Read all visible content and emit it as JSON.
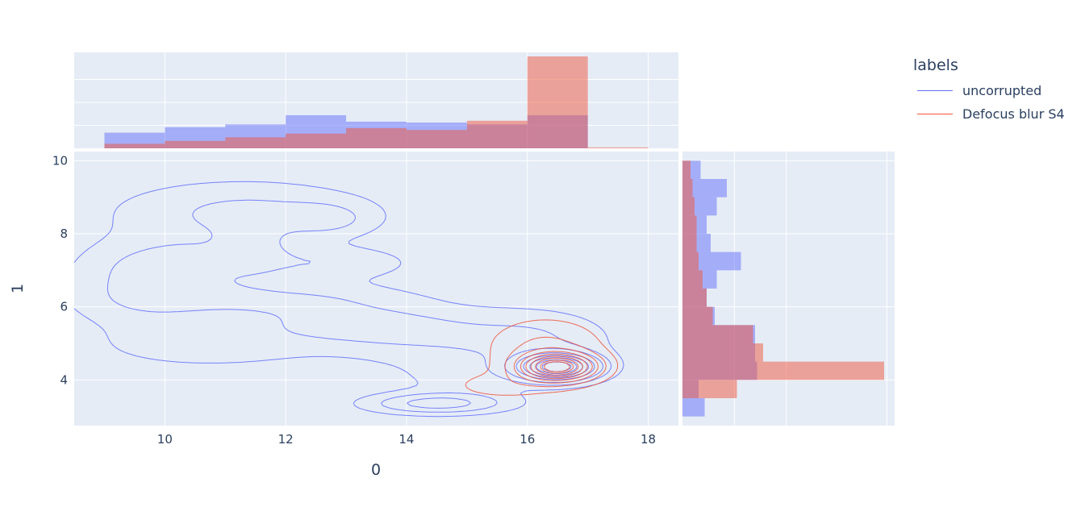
{
  "legend": {
    "title": "labels",
    "items": [
      {
        "name": "uncorrupted",
        "color": "#636efa"
      },
      {
        "name": "Defocus blur S4",
        "color": "#ef553b"
      }
    ]
  },
  "chart_data": {
    "type": "contour",
    "xlabel": "0",
    "ylabel": "1",
    "xlim": [
      8.5,
      18.5
    ],
    "ylim": [
      2.75,
      10.25
    ],
    "x_ticks": [
      10,
      12,
      14,
      16,
      18
    ],
    "y_ticks": [
      4,
      6,
      8,
      10
    ],
    "grid": true,
    "legend_placement": "top-right",
    "colors": {
      "plot_bg": "#e5ecf6",
      "grid": "#ffffff",
      "text": "#2a3f5f"
    },
    "series": [
      {
        "name": "uncorrupted",
        "color": "#636efa",
        "contour_centers": [
          [
            11.5,
            7.7
          ],
          [
            12.6,
            8.4
          ],
          [
            12.8,
            7.2
          ],
          [
            9.4,
            5.8
          ],
          [
            10.5,
            4.8
          ],
          [
            13.0,
            5.5
          ],
          [
            14.5,
            3.3
          ],
          [
            16.5,
            4.4
          ]
        ],
        "x_hist": {
          "bins": [
            [
              9,
              10
            ],
            [
              10,
              11
            ],
            [
              11,
              12
            ],
            [
              12,
              13
            ],
            [
              13,
              14
            ],
            [
              14,
              15
            ],
            [
              15,
              16
            ],
            [
              16,
              17
            ],
            [
              17,
              18
            ]
          ],
          "counts": [
            0.17,
            0.23,
            0.26,
            0.36,
            0.29,
            0.28,
            0.26,
            0.36,
            0.0
          ]
        },
        "y_hist": {
          "bins": [
            [
              3.0,
              3.5
            ],
            [
              3.5,
              4.0
            ],
            [
              4.0,
              4.5
            ],
            [
              4.5,
              5.0
            ],
            [
              5.0,
              5.5
            ],
            [
              5.5,
              6.0
            ],
            [
              6.0,
              6.5
            ],
            [
              6.5,
              7.0
            ],
            [
              7.0,
              7.5
            ],
            [
              7.5,
              8.0
            ],
            [
              8.0,
              8.5
            ],
            [
              8.5,
              9.0
            ],
            [
              9.0,
              9.5
            ],
            [
              9.5,
              10.0
            ]
          ],
          "counts": [
            0.11,
            0.08,
            0.37,
            0.36,
            0.36,
            0.16,
            0.12,
            0.17,
            0.29,
            0.14,
            0.12,
            0.17,
            0.22,
            0.09
          ]
        }
      },
      {
        "name": "Defocus blur S4",
        "color": "#ef553b",
        "contour_centers": [
          [
            16.5,
            4.4
          ],
          [
            15.5,
            3.9
          ]
        ],
        "x_hist": {
          "bins": [
            [
              9,
              10
            ],
            [
              10,
              11
            ],
            [
              11,
              12
            ],
            [
              12,
              13
            ],
            [
              13,
              14
            ],
            [
              14,
              15
            ],
            [
              15,
              16
            ],
            [
              16,
              17
            ],
            [
              17,
              18
            ]
          ],
          "counts": [
            0.05,
            0.08,
            0.12,
            0.16,
            0.22,
            0.2,
            0.3,
            1.0,
            0.01
          ]
        },
        "y_hist": {
          "bins": [
            [
              3.0,
              3.5
            ],
            [
              3.5,
              4.0
            ],
            [
              4.0,
              4.5
            ],
            [
              4.5,
              5.0
            ],
            [
              5.0,
              5.5
            ],
            [
              5.5,
              6.0
            ],
            [
              6.0,
              6.5
            ],
            [
              6.5,
              7.0
            ],
            [
              7.0,
              7.5
            ],
            [
              7.5,
              8.0
            ],
            [
              8.0,
              8.5
            ],
            [
              8.5,
              9.0
            ],
            [
              9.0,
              9.5
            ],
            [
              9.5,
              10.0
            ]
          ],
          "counts": [
            0.0,
            0.27,
            1.0,
            0.4,
            0.35,
            0.15,
            0.12,
            0.1,
            0.08,
            0.07,
            0.07,
            0.06,
            0.05,
            0.04
          ]
        }
      }
    ]
  }
}
